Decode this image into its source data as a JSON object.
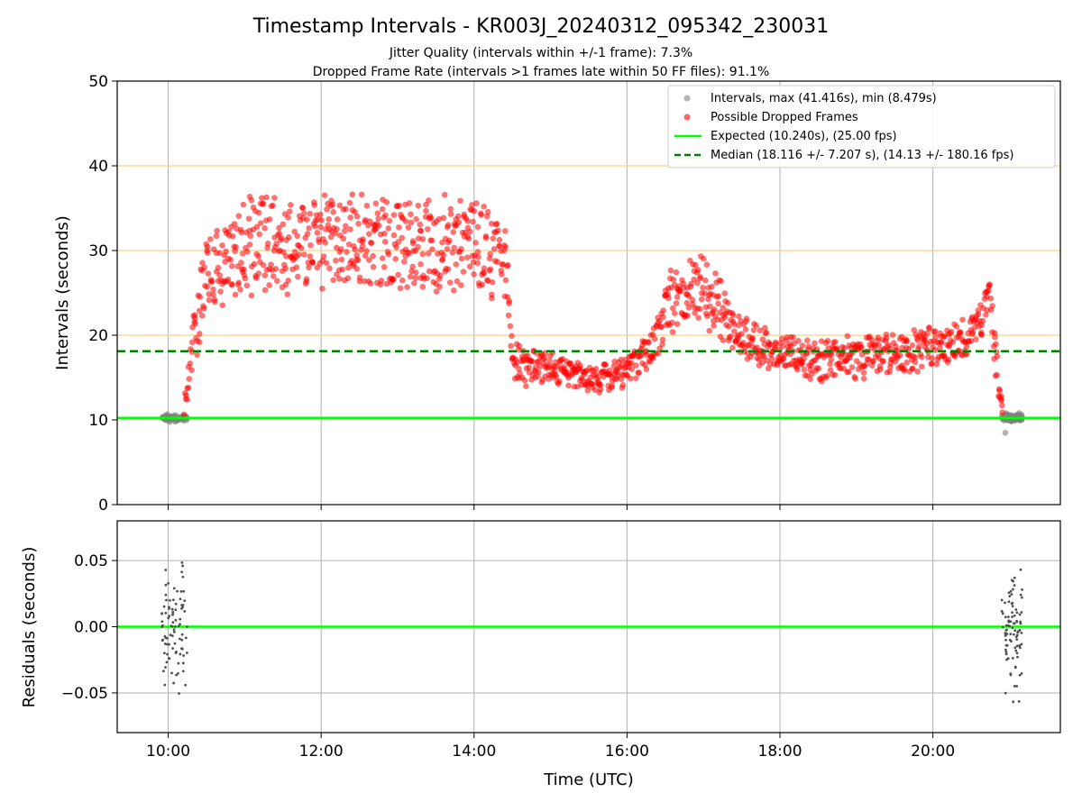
{
  "title": "Timestamp Intervals - KR003J_20240312_095342_230031",
  "subtitle_lines": [
    "Jitter Quality (intervals within +/-1 frame): 7.3%",
    "Dropped Frame Rate (intervals >1 frames late within 50 FF files): 91.1%"
  ],
  "colors": {
    "intervals": "#808080",
    "dropped": "#ff0000",
    "expected": "#00ff00",
    "median": "#008000",
    "guide_lines": "#ffd27a",
    "grid": "#b0b0b0",
    "residuals": "#505050"
  },
  "chart_data": [
    {
      "type": "scatter",
      "title": "Timestamp Intervals - KR003J_20240312_095342_230031",
      "xlabel": "",
      "ylabel": "Intervals (seconds)",
      "xlim": [
        "09:20",
        "21:40"
      ],
      "ylim": [
        0,
        50
      ],
      "x_ticks": [
        "10:00",
        "12:00",
        "14:00",
        "16:00",
        "18:00",
        "20:00"
      ],
      "y_ticks": [
        "0",
        "10",
        "20",
        "30",
        "40",
        "50"
      ],
      "grid": "vertical",
      "guide_lines_y": [
        20,
        30,
        40
      ],
      "legend_position": "top-right",
      "series": [
        {
          "name": "Intervals, max (41.416s), min (8.479s)",
          "kind": "points",
          "max": 41.416,
          "min": 8.479,
          "segments": [
            {
              "t_start": "09:55",
              "t_end": "10:15",
              "mean": 10.2,
              "spread": 0.5
            },
            {
              "t_start": "20:54",
              "t_end": "21:10",
              "mean": 10.2,
              "spread": 0.6
            }
          ]
        },
        {
          "name": "Possible Dropped Frames",
          "kind": "points",
          "profile": [
            [
              "10:13",
              11.5,
              2.0
            ],
            [
              "10:20",
              19.0,
              4.0
            ],
            [
              "10:30",
              28.0,
              5.0
            ],
            [
              "11:00",
              30.5,
              6.0
            ],
            [
              "12:00",
              31.0,
              6.0
            ],
            [
              "13:00",
              31.0,
              6.0
            ],
            [
              "14:00",
              30.5,
              6.0
            ],
            [
              "14:25",
              28.5,
              5.0
            ],
            [
              "14:30",
              17.0,
              2.5
            ],
            [
              "15:00",
              16.0,
              2.0
            ],
            [
              "15:30",
              14.8,
              1.8
            ],
            [
              "16:00",
              15.5,
              2.0
            ],
            [
              "16:20",
              19.0,
              2.5
            ],
            [
              "16:35",
              24.0,
              4.0
            ],
            [
              "17:00",
              26.5,
              5.0
            ],
            [
              "17:20",
              21.0,
              3.0
            ],
            [
              "17:40",
              19.0,
              2.5
            ],
            [
              "18:30",
              17.0,
              2.5
            ],
            [
              "19:30",
              17.8,
              2.5
            ],
            [
              "20:00",
              18.3,
              2.5
            ],
            [
              "20:30",
              20.0,
              2.5
            ],
            [
              "20:45",
              24.0,
              3.0
            ],
            [
              "20:50",
              16.0,
              3.0
            ],
            [
              "20:55",
              10.8,
              0.8
            ]
          ]
        },
        {
          "name": "Expected (10.240s), (25.00 fps)",
          "kind": "hline",
          "y": 10.24
        },
        {
          "name": "Median (18.116 +/- 7.207 s), (14.13 +/- 180.16 fps)",
          "kind": "hline",
          "y": 18.116
        }
      ]
    },
    {
      "type": "scatter",
      "xlabel": "Time (UTC)",
      "ylabel": "Residuals (seconds)",
      "xlim": [
        "09:20",
        "21:40"
      ],
      "ylim": [
        -0.08,
        0.08
      ],
      "x_ticks": [
        "10:00",
        "12:00",
        "14:00",
        "16:00",
        "18:00",
        "20:00"
      ],
      "y_ticks": [
        "0.05",
        "0.00",
        "−0.05"
      ],
      "grid": "both",
      "series": [
        {
          "kind": "hline",
          "y": 0.0
        },
        {
          "kind": "points",
          "segments": [
            {
              "t_start": "09:55",
              "t_end": "10:15",
              "spread": 0.07
            },
            {
              "t_start": "20:54",
              "t_end": "21:10",
              "spread": 0.07
            }
          ]
        }
      ]
    }
  ]
}
